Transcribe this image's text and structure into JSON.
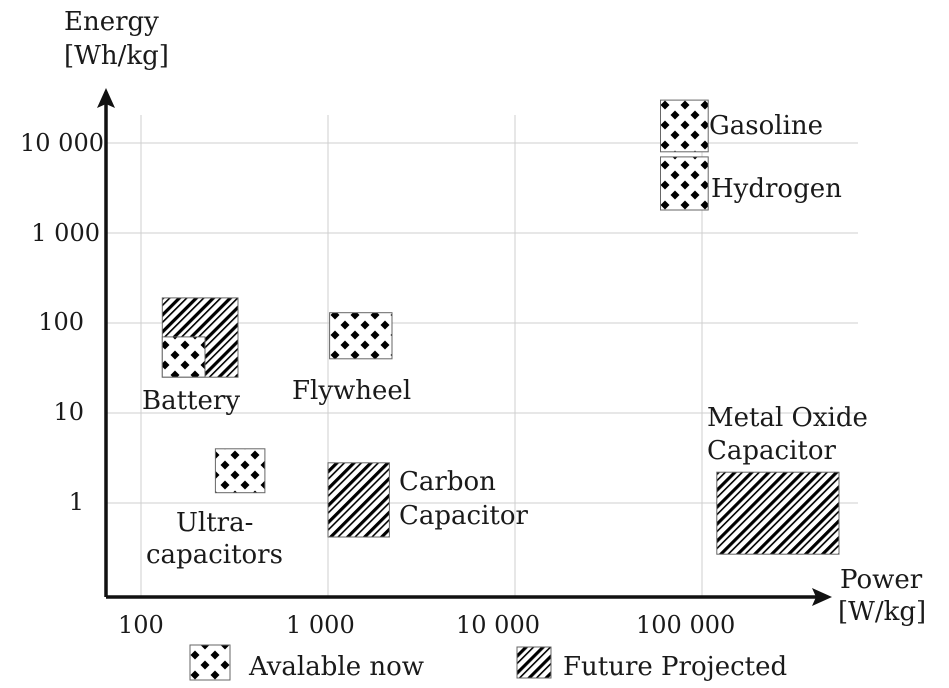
{
  "chart_data": {
    "type": "range-box",
    "xlabel": [
      "Power",
      "[W/kg]"
    ],
    "ylabel": [
      "Energy",
      "[Wh/kg]"
    ],
    "x_scale": "log",
    "y_scale": "log",
    "xlim": [
      60,
      650000
    ],
    "ylim": [
      0.12,
      30000
    ],
    "grid": true,
    "x_ticks": [
      {
        "value": 100,
        "label": "100"
      },
      {
        "value": 1000,
        "label": "1 000"
      },
      {
        "value": 10000,
        "label": "10 000"
      },
      {
        "value": 100000,
        "label": "100 000"
      }
    ],
    "y_ticks": [
      {
        "value": 1,
        "label": "1"
      },
      {
        "value": 10,
        "label": "10"
      },
      {
        "value": 100,
        "label": "100"
      },
      {
        "value": 1000,
        "label": "1 000"
      },
      {
        "value": 10000,
        "label": "10 000"
      }
    ],
    "legend": {
      "position": "bottom",
      "items": [
        {
          "pattern": "available",
          "label": "Avalable now"
        },
        {
          "pattern": "future",
          "label": "Future Projected"
        }
      ]
    },
    "regions": [
      {
        "name": "battery-future",
        "pattern": "future",
        "x": [
          130,
          330
        ],
        "y": [
          25,
          190
        ]
      },
      {
        "name": "battery-available",
        "pattern": "available",
        "x": [
          130,
          220
        ],
        "y": [
          25,
          70
        ]
      },
      {
        "name": "flywheel",
        "pattern": "available",
        "x": [
          1020,
          2200
        ],
        "y": [
          40,
          130
        ]
      },
      {
        "name": "ultracapacitors",
        "pattern": "available",
        "x": [
          250,
          460
        ],
        "y": [
          1.3,
          4
        ]
      },
      {
        "name": "carbon-capacitor",
        "pattern": "future",
        "x": [
          1000,
          2130
        ],
        "y": [
          0.42,
          2.8
        ]
      },
      {
        "name": "metal-oxide-capacitor",
        "pattern": "future",
        "x": [
          120000,
          540000
        ],
        "y": [
          0.27,
          2.2
        ]
      },
      {
        "name": "gasoline",
        "pattern": "available",
        "x": [
          60000,
          108000
        ],
        "y": [
          8000,
          30000
        ]
      },
      {
        "name": "hydrogen",
        "pattern": "available",
        "x": [
          60000,
          108000
        ],
        "y": [
          1800,
          7000
        ]
      }
    ],
    "annotations": [
      {
        "name": "label-battery",
        "lines": [
          "Battery"
        ]
      },
      {
        "name": "label-flywheel",
        "lines": [
          "Flywheel"
        ]
      },
      {
        "name": "label-ultracapacitors",
        "lines": [
          "Ultra-",
          "capacitors"
        ]
      },
      {
        "name": "label-carbon-capacitor",
        "lines": [
          "Carbon",
          "Capacitor"
        ]
      },
      {
        "name": "label-metal-oxide",
        "lines": [
          "Metal Oxide",
          "Capacitor"
        ]
      },
      {
        "name": "label-gasoline",
        "lines": [
          "Gasoline"
        ]
      },
      {
        "name": "label-hydrogen",
        "lines": [
          "Hydrogen"
        ]
      }
    ]
  }
}
